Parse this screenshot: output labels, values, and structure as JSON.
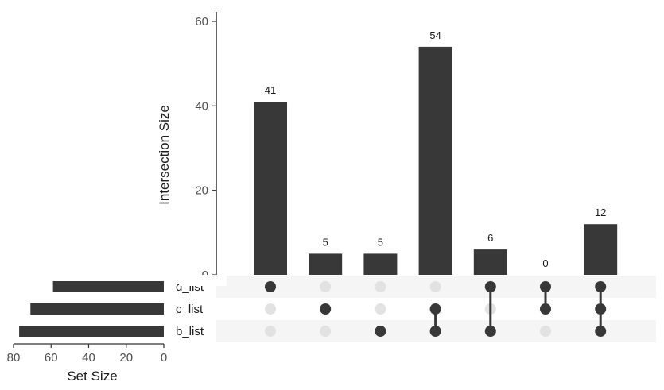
{
  "chart_data": {
    "type": "bar",
    "intersection_plot": {
      "ylabel": "Intersection Size",
      "ylim": [
        0,
        63
      ],
      "yticks": [
        0,
        20,
        40,
        60
      ],
      "values": [
        41,
        5,
        5,
        54,
        6,
        0,
        12
      ],
      "value_labels": [
        "41",
        "5",
        "5",
        "54",
        "6",
        "0",
        "12"
      ]
    },
    "sets": [
      "d_list",
      "c_list",
      "b_list"
    ],
    "membership": [
      [
        "d_list"
      ],
      [
        "c_list"
      ],
      [
        "b_list"
      ],
      [
        "c_list",
        "b_list"
      ],
      [
        "d_list",
        "b_list"
      ],
      [
        "d_list",
        "c_list"
      ],
      [
        "d_list",
        "c_list",
        "b_list"
      ]
    ],
    "set_size_plot": {
      "xlabel": "Set Size",
      "xlim": [
        80,
        0
      ],
      "xticks": [
        80,
        60,
        40,
        20,
        0
      ],
      "values": {
        "d_list": 59,
        "c_list": 71,
        "b_list": 77
      }
    },
    "colors": {
      "bar": "#383838",
      "dot_active": "#383838",
      "dot_inactive": "#e2e2e2",
      "row_band": "#f5f5f5",
      "axis": "#333333"
    }
  }
}
